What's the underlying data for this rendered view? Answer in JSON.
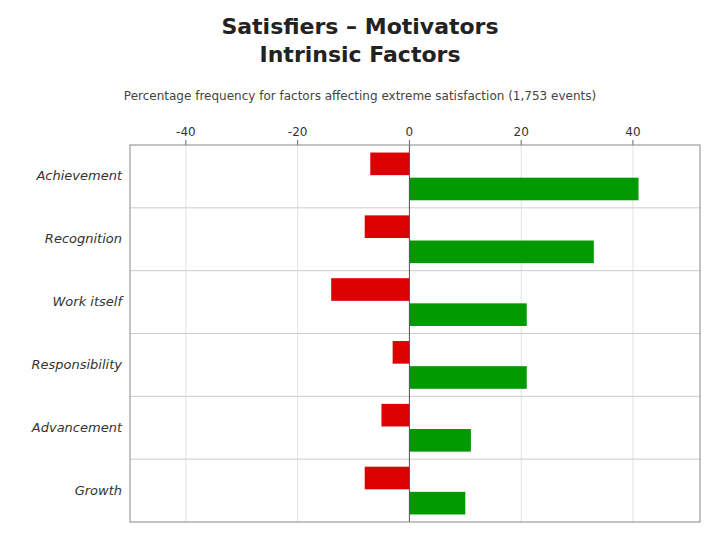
{
  "chart_data": {
    "type": "bar",
    "orientation": "horizontal",
    "title": "Satisfiers – Motivators\nIntrinsic Factors",
    "subtitle": "Percentage frequency for factors affecting extreme satisfaction (1,753 events)",
    "categories": [
      "Achievement",
      "Recognition",
      "Work itself",
      "Responsibility",
      "Advancement",
      "Growth"
    ],
    "series": [
      {
        "color": "#DD0000",
        "values": [
          -7,
          -8,
          -14,
          -3,
          -5,
          -8
        ]
      },
      {
        "color": "#009900",
        "values": [
          41,
          33,
          21,
          21,
          11,
          10
        ]
      }
    ],
    "xlim": [
      -50,
      52
    ],
    "xticks": [
      -40,
      -20,
      0,
      20,
      40
    ]
  }
}
